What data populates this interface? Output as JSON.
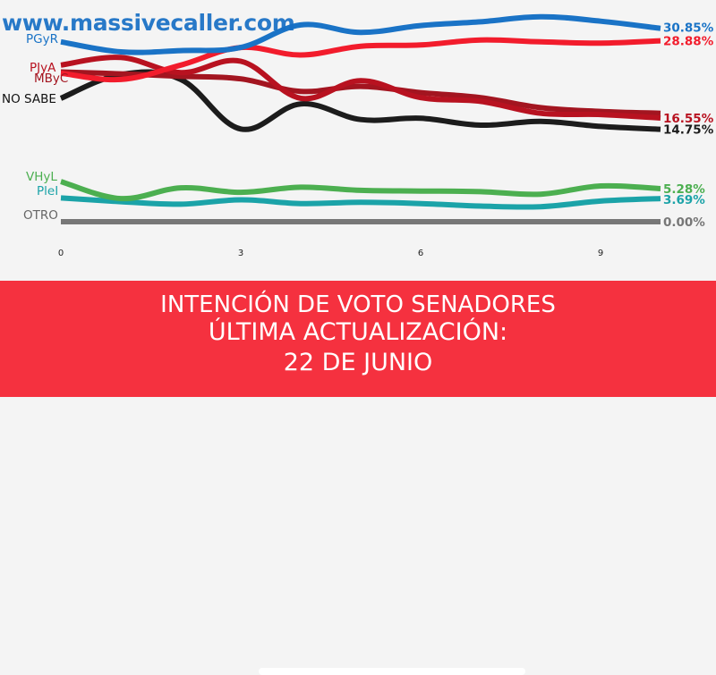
{
  "watermark": "www.massivecaller.com",
  "banner": {
    "line1": "INTENCIÓN DE VOTO SENADORES",
    "line2": "ÚLTIMA ACTUALIZACIÓN:",
    "line3": "22 DE JUNIO"
  },
  "chart_data": {
    "type": "line",
    "x": [
      0,
      1,
      2,
      3,
      4,
      5,
      6,
      7,
      8,
      9,
      10
    ],
    "xticks": [
      0,
      3,
      6,
      9
    ],
    "xlim": [
      0,
      10
    ],
    "ylim": [
      0,
      32
    ],
    "grid": false,
    "series": [
      {
        "name": "PGyR",
        "color": "#1a73c6",
        "end_label": "30.85%",
        "values": [
          28.7,
          27.1,
          27.3,
          27.8,
          31.4,
          30.2,
          31.3,
          31.9,
          32.7,
          32.0,
          30.85
        ]
      },
      {
        "name": "",
        "color": "#f21c2c",
        "end_label": "28.88%",
        "values": [
          23.7,
          22.7,
          25.0,
          27.8,
          26.6,
          28.0,
          28.2,
          29.0,
          28.7,
          28.5,
          28.88
        ]
      },
      {
        "name": "PJyA",
        "color": "#b81220",
        "end_label": "16.55%",
        "values": [
          25.0,
          26.2,
          23.8,
          25.6,
          19.7,
          22.5,
          19.8,
          19.2,
          17.3,
          17.1,
          16.55
        ]
      },
      {
        "name": "MByC",
        "color": "#a31520",
        "end_label": "",
        "values": [
          23.9,
          23.6,
          23.2,
          22.8,
          20.8,
          21.6,
          20.6,
          19.8,
          18.2,
          17.6,
          17.3
        ]
      },
      {
        "name": "NO SABE",
        "color": "#1c1c1c",
        "end_label": "14.75%",
        "values": [
          19.7,
          23.5,
          22.7,
          14.8,
          18.8,
          16.3,
          16.5,
          15.4,
          16.0,
          15.2,
          14.75
        ]
      },
      {
        "name": "VHyL",
        "color": "#4caf50",
        "end_label": "5.28%",
        "values": [
          6.4,
          3.7,
          5.4,
          4.7,
          5.5,
          5.0,
          4.9,
          4.8,
          4.4,
          5.7,
          5.28
        ]
      },
      {
        "name": "PleI",
        "color": "#1ba3a8",
        "end_label": "3.69%",
        "values": [
          3.8,
          3.2,
          2.8,
          3.5,
          2.9,
          3.1,
          2.9,
          2.5,
          2.4,
          3.3,
          3.69
        ]
      },
      {
        "name": "OTRO",
        "color": "#777777",
        "end_label": "0.00%",
        "values": [
          0.0,
          0.0,
          0.0,
          0.0,
          0.0,
          0.0,
          0.0,
          0.0,
          0.0,
          0.0,
          0.0
        ]
      }
    ]
  }
}
